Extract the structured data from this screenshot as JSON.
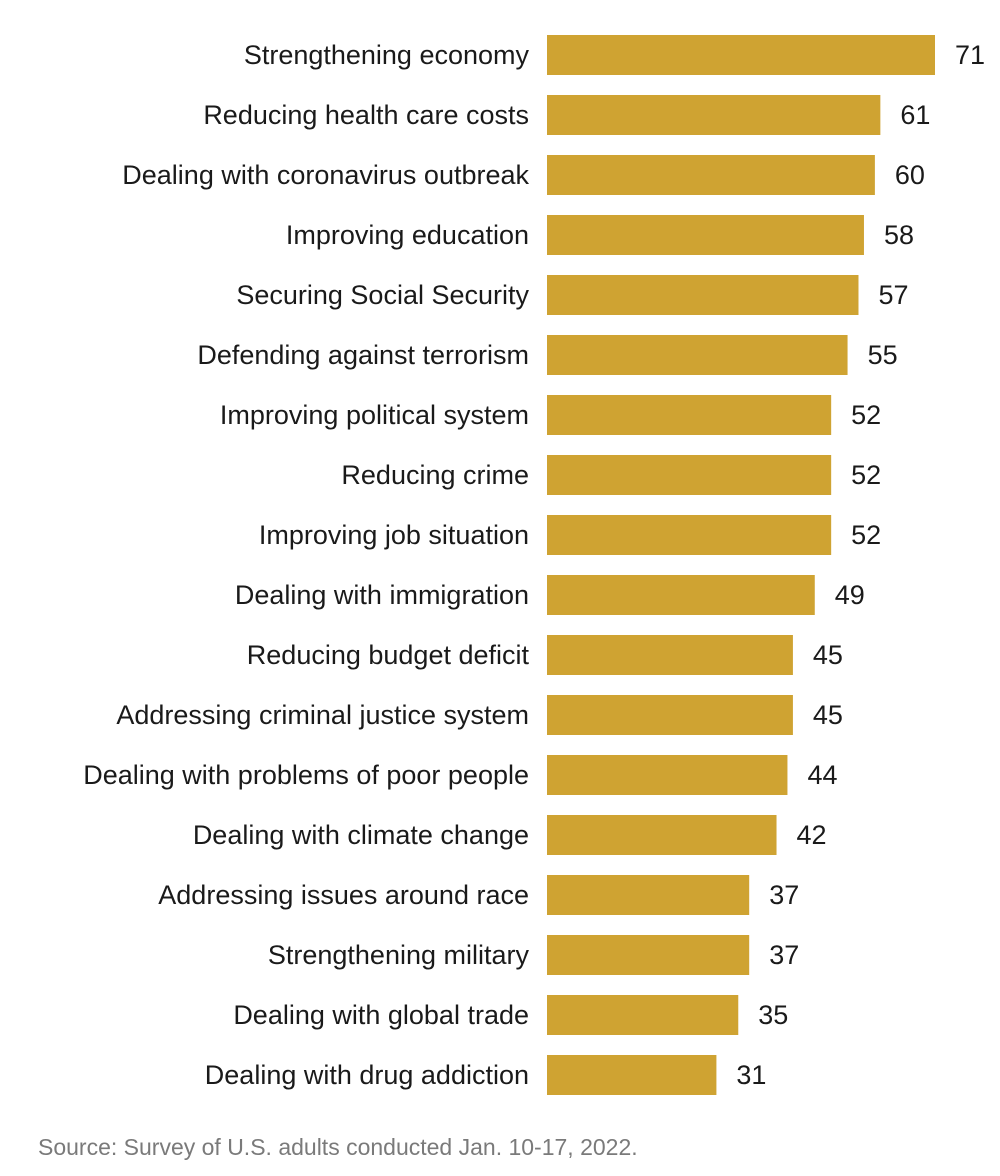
{
  "chart_data": {
    "type": "bar",
    "orientation": "horizontal",
    "categories": [
      "Strengthening economy",
      "Reducing health care costs",
      "Dealing with coronavirus outbreak",
      "Improving education",
      "Securing Social Security",
      "Defending against terrorism",
      "Improving political system",
      "Reducing crime",
      "Improving job situation",
      "Dealing with immigration",
      "Reducing budget deficit",
      "Addressing criminal justice system",
      "Dealing with problems of poor people",
      "Dealing with climate change",
      "Addressing issues around race",
      "Strengthening military",
      "Dealing with global trade",
      "Dealing with drug addiction"
    ],
    "values": [
      71,
      61,
      60,
      58,
      57,
      55,
      52,
      52,
      52,
      49,
      45,
      45,
      44,
      42,
      37,
      37,
      35,
      31
    ],
    "xlim": [
      0,
      71
    ],
    "grid": false,
    "bar_color": "#cfa332"
  },
  "source": "Source: Survey of U.S. adults conducted Jan. 10-17, 2022."
}
